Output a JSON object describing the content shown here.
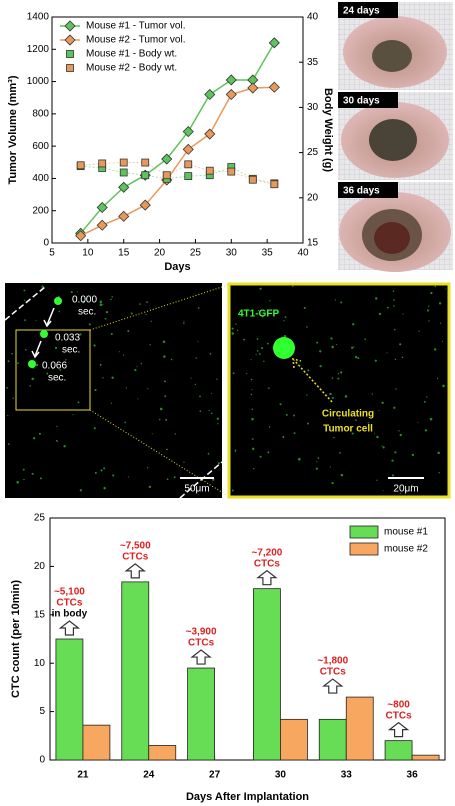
{
  "chart_data": [
    {
      "type": "line",
      "x_label": "Days",
      "y_label": "Tumor Volume (mm³)",
      "y2_label": "Body Weight (g)",
      "x": [
        9,
        12,
        15,
        18,
        21,
        24,
        27,
        30,
        33,
        36
      ],
      "xlim": [
        5,
        40
      ],
      "xticks": [
        5,
        10,
        15,
        20,
        25,
        30,
        35,
        40
      ],
      "ylim": [
        0,
        1400
      ],
      "yticks": [
        0,
        200,
        400,
        600,
        800,
        1000,
        1200,
        1400
      ],
      "y2lim": [
        15,
        40
      ],
      "y2ticks": [
        15,
        20,
        25,
        30,
        35,
        40
      ],
      "legend": "upper left",
      "series": [
        {
          "name": "Mouse #1 - Tumor vol.",
          "color": "#5cc45c",
          "marker": "diamond",
          "line": true,
          "values": [
            60,
            220,
            345,
            420,
            520,
            690,
            920,
            1010,
            1010,
            1240
          ]
        },
        {
          "name": "Mouse #2 - Tumor vol.",
          "color": "#e8995a",
          "marker": "diamond",
          "line": true,
          "values": [
            45,
            110,
            165,
            235,
            390,
            580,
            675,
            920,
            960,
            965
          ]
        },
        {
          "name": "Mouse #1 - Body wt.",
          "color": "#5cc45c",
          "marker": "square",
          "line": false,
          "axis": "y2",
          "values": [
            23.5,
            23.3,
            22.8,
            22.5,
            22.1,
            22.4,
            22.5,
            23.4,
            22.1,
            21.6
          ]
        },
        {
          "name": "Mouse #2 - Body wt.",
          "color": "#e8995a",
          "marker": "square",
          "line": false,
          "axis": "y2",
          "values": [
            23.6,
            23.8,
            23.9,
            23.9,
            22.5,
            23.7,
            23.0,
            22.9,
            22.0,
            21.5
          ]
        }
      ]
    },
    {
      "type": "bar",
      "x_label": "Days After Implantation",
      "y_label": "CTC count (per 10min)",
      "categories": [
        "21",
        "24",
        "27",
        "30",
        "33",
        "36"
      ],
      "ylim": [
        0,
        25
      ],
      "yticks": [
        0,
        5,
        10,
        15,
        20,
        25
      ],
      "legend": "upper right",
      "series": [
        {
          "name": "mouse #1",
          "color": "#66dd55",
          "values": [
            12.5,
            18.4,
            9.5,
            17.7,
            4.2,
            2.0
          ]
        },
        {
          "name": "mouse #2",
          "color": "#f7a760",
          "values": [
            3.6,
            1.5,
            null,
            4.2,
            6.5,
            0.5
          ]
        }
      ],
      "annotations": [
        [
          "~5,100",
          "CTCs",
          "in body"
        ],
        [
          "~7,500",
          "CTCs"
        ],
        [
          "~3,900",
          "CTCs"
        ],
        [
          "~7,200",
          "CTCs"
        ],
        [
          "~1,800",
          "CTCs"
        ],
        [
          "~800",
          "CTCs"
        ]
      ]
    }
  ],
  "panels": {
    "photos": [
      "24 days",
      "30 days",
      "36 days"
    ],
    "micro": {
      "times": [
        [
          "0.000",
          "sec."
        ],
        [
          "0.033",
          "sec."
        ],
        [
          "0.066",
          "sec."
        ]
      ],
      "scale_left": "50μm",
      "cell_label": "4T1-GFP",
      "ctc_label": [
        "Circulating",
        "Tumor cell"
      ],
      "scale_right": "20μm"
    }
  }
}
